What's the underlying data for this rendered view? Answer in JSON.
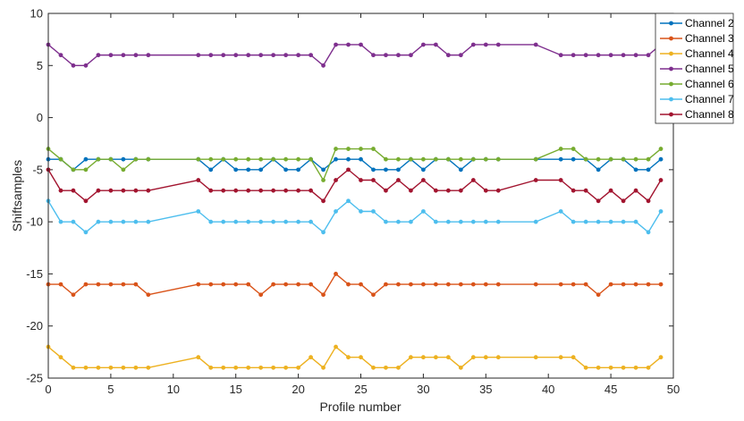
{
  "chart_data": {
    "type": "line",
    "title": "",
    "xlabel": "Profile number",
    "ylabel": "Shiftsamples",
    "xlim": [
      0,
      50
    ],
    "ylim": [
      -25,
      10
    ],
    "xticks": [
      0,
      5,
      10,
      15,
      20,
      25,
      30,
      35,
      40,
      45,
      50
    ],
    "yticks": [
      -25,
      -20,
      -15,
      -10,
      -5,
      0,
      5,
      10
    ],
    "grid": false,
    "legend_position": "top-right",
    "series": [
      {
        "name": "Channel 2",
        "color": "#0072BD",
        "x": [
          0,
          1,
          2,
          3,
          4,
          5,
          6,
          7,
          8,
          12,
          13,
          14,
          15,
          16,
          17,
          18,
          19,
          20,
          21,
          22,
          23,
          24,
          25,
          26,
          27,
          28,
          29,
          30,
          31,
          32,
          33,
          34,
          35,
          36,
          39,
          41,
          42,
          43,
          44,
          45,
          46,
          47,
          48,
          49
        ],
        "y": [
          -4,
          -4,
          -5,
          -4,
          -4,
          -4,
          -4,
          -4,
          -4,
          -4,
          -5,
          -4,
          -5,
          -5,
          -5,
          -4,
          -5,
          -5,
          -4,
          -5,
          -4,
          -4,
          -4,
          -5,
          -5,
          -5,
          -4,
          -5,
          -4,
          -4,
          -5,
          -4,
          -4,
          -4,
          -4,
          -4,
          -4,
          -4,
          -5,
          -4,
          -4,
          -5,
          -5,
          -4
        ]
      },
      {
        "name": "Channel 3",
        "color": "#D95319",
        "x": [
          0,
          1,
          2,
          3,
          4,
          5,
          6,
          7,
          8,
          12,
          13,
          14,
          15,
          16,
          17,
          18,
          19,
          20,
          21,
          22,
          23,
          24,
          25,
          26,
          27,
          28,
          29,
          30,
          31,
          32,
          33,
          34,
          35,
          36,
          39,
          41,
          42,
          43,
          44,
          45,
          46,
          47,
          48,
          49
        ],
        "y": [
          -16,
          -16,
          -17,
          -16,
          -16,
          -16,
          -16,
          -16,
          -17,
          -16,
          -16,
          -16,
          -16,
          -16,
          -17,
          -16,
          -16,
          -16,
          -16,
          -17,
          -15,
          -16,
          -16,
          -17,
          -16,
          -16,
          -16,
          -16,
          -16,
          -16,
          -16,
          -16,
          -16,
          -16,
          -16,
          -16,
          -16,
          -16,
          -17,
          -16,
          -16,
          -16,
          -16,
          -16
        ]
      },
      {
        "name": "Channel 4",
        "color": "#EDB120",
        "x": [
          0,
          1,
          2,
          3,
          4,
          5,
          6,
          7,
          8,
          12,
          13,
          14,
          15,
          16,
          17,
          18,
          19,
          20,
          21,
          22,
          23,
          24,
          25,
          26,
          27,
          28,
          29,
          30,
          31,
          32,
          33,
          34,
          35,
          36,
          39,
          41,
          42,
          43,
          44,
          45,
          46,
          47,
          48,
          49
        ],
        "y": [
          -22,
          -23,
          -24,
          -24,
          -24,
          -24,
          -24,
          -24,
          -24,
          -23,
          -24,
          -24,
          -24,
          -24,
          -24,
          -24,
          -24,
          -24,
          -23,
          -24,
          -22,
          -23,
          -23,
          -24,
          -24,
          -24,
          -23,
          -23,
          -23,
          -23,
          -24,
          -23,
          -23,
          -23,
          -23,
          -23,
          -23,
          -24,
          -24,
          -24,
          -24,
          -24,
          -24,
          -23
        ]
      },
      {
        "name": "Channel 5",
        "color": "#7E2F8E",
        "x": [
          0,
          1,
          2,
          3,
          4,
          5,
          6,
          7,
          8,
          12,
          13,
          14,
          15,
          16,
          17,
          18,
          19,
          20,
          21,
          22,
          23,
          24,
          25,
          26,
          27,
          28,
          29,
          30,
          31,
          32,
          33,
          34,
          35,
          36,
          39,
          41,
          42,
          43,
          44,
          45,
          46,
          47,
          48,
          49
        ],
        "y": [
          7,
          6,
          5,
          5,
          6,
          6,
          6,
          6,
          6,
          6,
          6,
          6,
          6,
          6,
          6,
          6,
          6,
          6,
          6,
          5,
          7,
          7,
          7,
          6,
          6,
          6,
          6,
          7,
          7,
          6,
          6,
          7,
          7,
          7,
          7,
          6,
          6,
          6,
          6,
          6,
          6,
          6,
          6,
          7
        ]
      },
      {
        "name": "Channel 6",
        "color": "#77AC30",
        "x": [
          0,
          1,
          2,
          3,
          4,
          5,
          6,
          7,
          8,
          12,
          13,
          14,
          15,
          16,
          17,
          18,
          19,
          20,
          21,
          22,
          23,
          24,
          25,
          26,
          27,
          28,
          29,
          30,
          31,
          32,
          33,
          34,
          35,
          36,
          39,
          41,
          42,
          43,
          44,
          45,
          46,
          47,
          48,
          49
        ],
        "y": [
          -3,
          -4,
          -5,
          -5,
          -4,
          -4,
          -5,
          -4,
          -4,
          -4,
          -4,
          -4,
          -4,
          -4,
          -4,
          -4,
          -4,
          -4,
          -4,
          -6,
          -3,
          -3,
          -3,
          -3,
          -4,
          -4,
          -4,
          -4,
          -4,
          -4,
          -4,
          -4,
          -4,
          -4,
          -4,
          -3,
          -3,
          -4,
          -4,
          -4,
          -4,
          -4,
          -4,
          -3
        ]
      },
      {
        "name": "Channel 7",
        "color": "#4DBEEE",
        "x": [
          0,
          1,
          2,
          3,
          4,
          5,
          6,
          7,
          8,
          12,
          13,
          14,
          15,
          16,
          17,
          18,
          19,
          20,
          21,
          22,
          23,
          24,
          25,
          26,
          27,
          28,
          29,
          30,
          31,
          32,
          33,
          34,
          35,
          36,
          39,
          41,
          42,
          43,
          44,
          45,
          46,
          47,
          48,
          49
        ],
        "y": [
          -8,
          -10,
          -10,
          -11,
          -10,
          -10,
          -10,
          -10,
          -10,
          -9,
          -10,
          -10,
          -10,
          -10,
          -10,
          -10,
          -10,
          -10,
          -10,
          -11,
          -9,
          -8,
          -9,
          -9,
          -10,
          -10,
          -10,
          -9,
          -10,
          -10,
          -10,
          -10,
          -10,
          -10,
          -10,
          -9,
          -10,
          -10,
          -10,
          -10,
          -10,
          -10,
          -11,
          -9
        ]
      },
      {
        "name": "Channel 8",
        "color": "#A2142F",
        "x": [
          0,
          1,
          2,
          3,
          4,
          5,
          6,
          7,
          8,
          12,
          13,
          14,
          15,
          16,
          17,
          18,
          19,
          20,
          21,
          22,
          23,
          24,
          25,
          26,
          27,
          28,
          29,
          30,
          31,
          32,
          33,
          34,
          35,
          36,
          39,
          41,
          42,
          43,
          44,
          45,
          46,
          47,
          48,
          49
        ],
        "y": [
          -5,
          -7,
          -7,
          -8,
          -7,
          -7,
          -7,
          -7,
          -7,
          -6,
          -7,
          -7,
          -7,
          -7,
          -7,
          -7,
          -7,
          -7,
          -7,
          -8,
          -6,
          -5,
          -6,
          -6,
          -7,
          -6,
          -7,
          -6,
          -7,
          -7,
          -7,
          -6,
          -7,
          -7,
          -6,
          -6,
          -7,
          -7,
          -8,
          -7,
          -8,
          -7,
          -8,
          -6
        ]
      }
    ]
  }
}
